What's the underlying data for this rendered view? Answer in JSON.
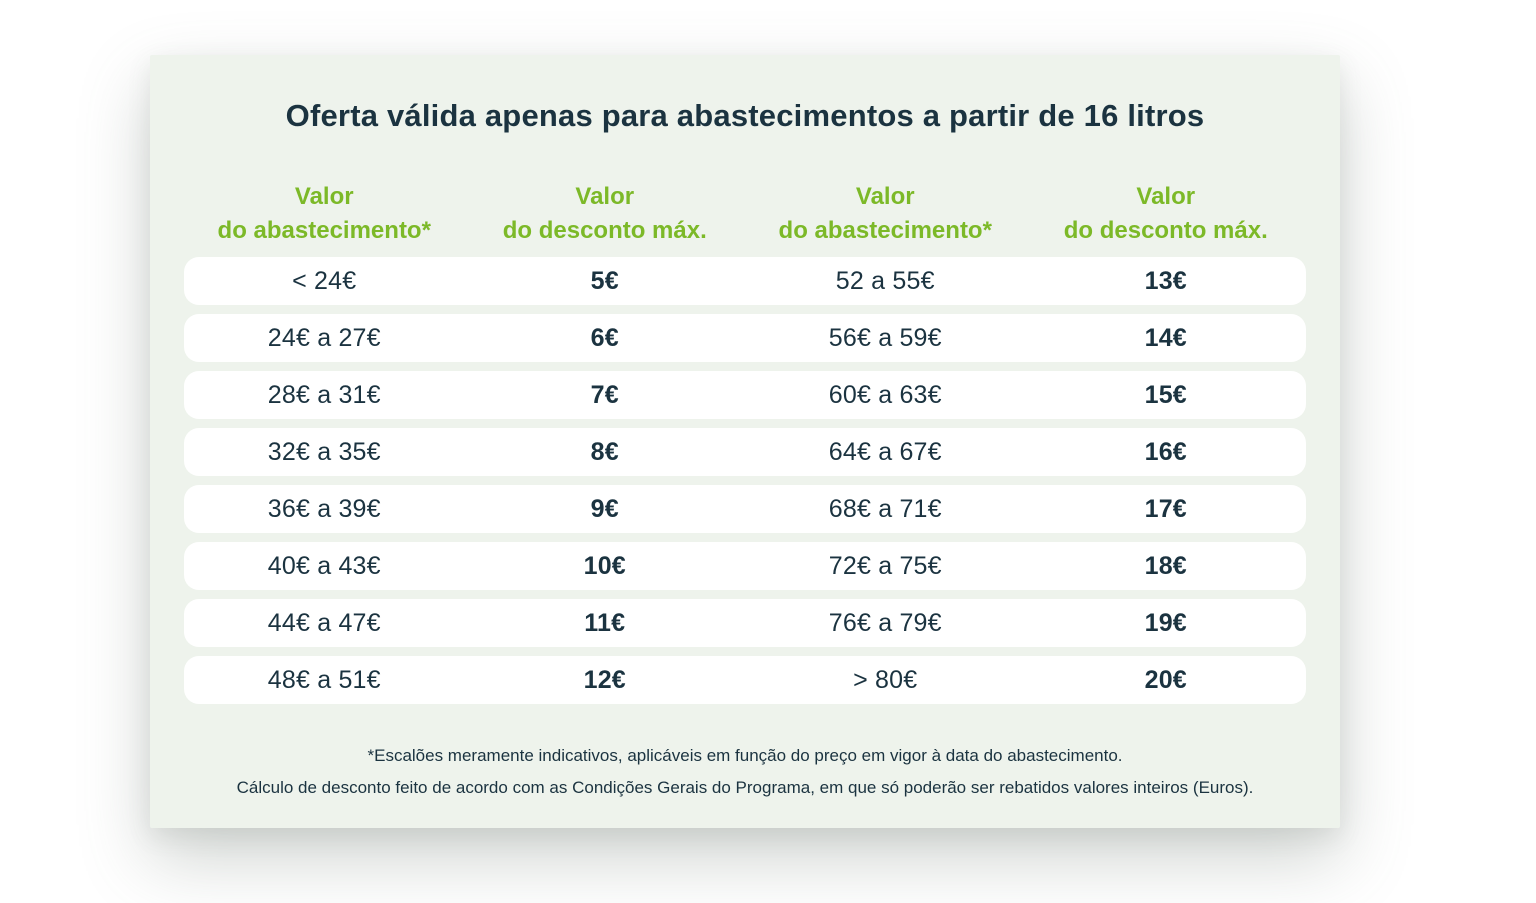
{
  "colors": {
    "page_bg": "#ffffff",
    "card_bg": "#eef3ec",
    "row_bg": "#ffffff",
    "accent_green": "#7cb928",
    "text_dark": "#1b3340"
  },
  "card": {
    "title": "Oferta válida apenas para abastecimentos a partir de 16 litros"
  },
  "table": {
    "headers": [
      {
        "line1": "Valor",
        "line2": "do abastecimento*"
      },
      {
        "line1": "Valor",
        "line2": "do desconto máx."
      },
      {
        "line1": "Valor",
        "line2": "do abastecimento*"
      },
      {
        "line1": "Valor",
        "line2": "do desconto máx."
      }
    ],
    "rows": [
      {
        "range_left": "< 24€",
        "discount_left": "5€",
        "range_right": "52 a 55€",
        "discount_right": "13€"
      },
      {
        "range_left": "24€ a 27€",
        "discount_left": "6€",
        "range_right": "56€ a 59€",
        "discount_right": "14€"
      },
      {
        "range_left": "28€ a 31€",
        "discount_left": "7€",
        "range_right": "60€ a 63€",
        "discount_right": "15€"
      },
      {
        "range_left": "32€ a 35€",
        "discount_left": "8€",
        "range_right": "64€ a 67€",
        "discount_right": "16€"
      },
      {
        "range_left": "36€ a 39€",
        "discount_left": "9€",
        "range_right": "68€ a 71€",
        "discount_right": "17€"
      },
      {
        "range_left": "40€ a 43€",
        "discount_left": "10€",
        "range_right": "72€ a 75€",
        "discount_right": "18€"
      },
      {
        "range_left": "44€ a 47€",
        "discount_left": "11€",
        "range_right": "76€ a 79€",
        "discount_right": "19€"
      },
      {
        "range_left": "48€ a 51€",
        "discount_left": "12€",
        "range_right": "> 80€",
        "discount_right": "20€"
      }
    ]
  },
  "footer": {
    "note1": "*Escalões meramente indicativos, aplicáveis em função do preço em vigor à data do abastecimento.",
    "note2": "Cálculo de desconto feito de acordo com as Condições Gerais do Programa, em que só poderão ser rebatidos valores inteiros (Euros)."
  },
  "chart_data": {
    "type": "table",
    "title": "Oferta válida apenas para abastecimentos a partir de 16 litros",
    "columns": [
      "Valor do abastecimento*",
      "Valor do desconto máx.",
      "Valor do abastecimento*",
      "Valor do desconto máx."
    ],
    "rows": [
      [
        "< 24€",
        "5€",
        "52 a 55€",
        "13€"
      ],
      [
        "24€ a 27€",
        "6€",
        "56€ a 59€",
        "14€"
      ],
      [
        "28€ a 31€",
        "7€",
        "60€ a 63€",
        "15€"
      ],
      [
        "32€ a 35€",
        "8€",
        "64€ a 67€",
        "16€"
      ],
      [
        "36€ a 39€",
        "9€",
        "68€ a 71€",
        "17€"
      ],
      [
        "40€ a 43€",
        "10€",
        "72€ a 75€",
        "18€"
      ],
      [
        "44€ a 47€",
        "11€",
        "76€ a 79€",
        "19€"
      ],
      [
        "48€ a 51€",
        "12€",
        "> 80€",
        "20€"
      ]
    ],
    "discount_tiers": [
      {
        "range_min_eur": 0,
        "range_max_eur": 24,
        "label": "< 24€",
        "max_discount_eur": 5
      },
      {
        "range_min_eur": 24,
        "range_max_eur": 27,
        "label": "24€ a 27€",
        "max_discount_eur": 6
      },
      {
        "range_min_eur": 28,
        "range_max_eur": 31,
        "label": "28€ a 31€",
        "max_discount_eur": 7
      },
      {
        "range_min_eur": 32,
        "range_max_eur": 35,
        "label": "32€ a 35€",
        "max_discount_eur": 8
      },
      {
        "range_min_eur": 36,
        "range_max_eur": 39,
        "label": "36€ a 39€",
        "max_discount_eur": 9
      },
      {
        "range_min_eur": 40,
        "range_max_eur": 43,
        "label": "40€ a 43€",
        "max_discount_eur": 10
      },
      {
        "range_min_eur": 44,
        "range_max_eur": 47,
        "label": "44€ a 47€",
        "max_discount_eur": 11
      },
      {
        "range_min_eur": 48,
        "range_max_eur": 51,
        "label": "48€ a 51€",
        "max_discount_eur": 12
      },
      {
        "range_min_eur": 52,
        "range_max_eur": 55,
        "label": "52 a 55€",
        "max_discount_eur": 13
      },
      {
        "range_min_eur": 56,
        "range_max_eur": 59,
        "label": "56€ a 59€",
        "max_discount_eur": 14
      },
      {
        "range_min_eur": 60,
        "range_max_eur": 63,
        "label": "60€ a 63€",
        "max_discount_eur": 15
      },
      {
        "range_min_eur": 64,
        "range_max_eur": 67,
        "label": "64€ a 67€",
        "max_discount_eur": 16
      },
      {
        "range_min_eur": 68,
        "range_max_eur": 71,
        "label": "68€ a 71€",
        "max_discount_eur": 17
      },
      {
        "range_min_eur": 72,
        "range_max_eur": 75,
        "label": "72€ a 75€",
        "max_discount_eur": 18
      },
      {
        "range_min_eur": 76,
        "range_max_eur": 79,
        "label": "76€ a 79€",
        "max_discount_eur": 19
      },
      {
        "range_min_eur": 80,
        "range_max_eur": null,
        "label": "> 80€",
        "max_discount_eur": 20
      }
    ],
    "footnotes": [
      "*Escalões meramente indicativos, aplicáveis em função do preço em vigor à data do abastecimento.",
      "Cálculo de desconto feito de acordo com as Condições Gerais do Programa, em que só poderão ser rebatidos valores inteiros (Euros)."
    ],
    "minimum_liters": 16
  }
}
